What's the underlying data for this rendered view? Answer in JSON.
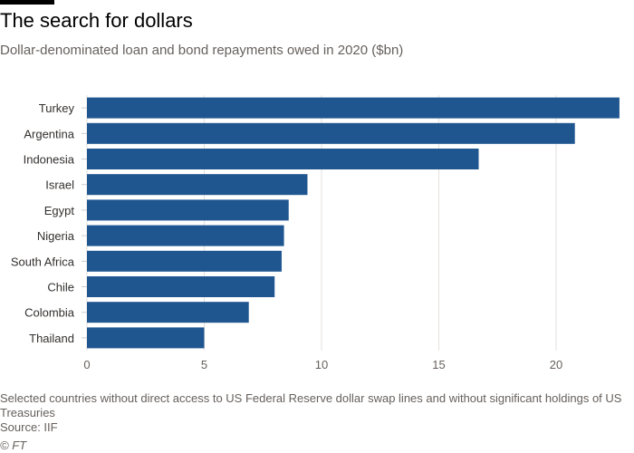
{
  "chart_data": {
    "type": "bar",
    "orientation": "horizontal",
    "title": "The search for dollars",
    "subtitle": "Dollar-denominated loan and bond repayments owed in 2020 ($bn)",
    "categories": [
      "Turkey",
      "Argentina",
      "Indonesia",
      "Israel",
      "Egypt",
      "Nigeria",
      "South Africa",
      "Chile",
      "Colombia",
      "Thailand"
    ],
    "values": [
      22.7,
      20.8,
      16.7,
      9.4,
      8.6,
      8.4,
      8.3,
      8.0,
      6.9,
      5.0
    ],
    "xlim": [
      0,
      22.7
    ],
    "xticks": [
      "0",
      "5",
      "10",
      "15",
      "20"
    ],
    "xlabel": "",
    "ylabel": "",
    "grid": true,
    "bar_color": "#205690"
  },
  "footer": {
    "note": "Selected countries without direct access to US Federal Reserve dollar swap lines and without significant holdings of US Treasuries",
    "source": "Source: IIF",
    "credit": "© FT"
  }
}
